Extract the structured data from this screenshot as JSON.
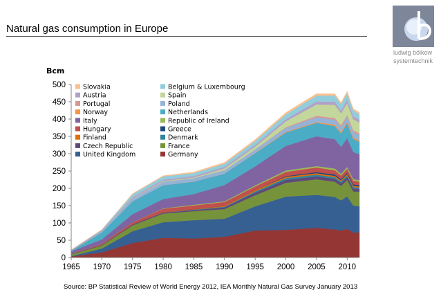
{
  "header": {
    "title": "Natural gas consumption in Europe",
    "logo_name": "b-logo-icon",
    "logo_text_1": "ludwig bölkow",
    "logo_text_2": "systemtechnik"
  },
  "footer": {
    "source": "Source: BP Statistical Review of World Energy 2012, IEA Monthly Natural Gas Survey January 2013"
  },
  "chart_data": {
    "type": "area",
    "stacked": true,
    "title": "Natural gas consumption in Europe",
    "ylabel": "Bcm",
    "xlabel": "",
    "xlim": [
      1965,
      2012
    ],
    "ylim": [
      0,
      500
    ],
    "xticks": [
      1965,
      1970,
      1975,
      1980,
      1985,
      1990,
      1995,
      2000,
      2005,
      2010
    ],
    "yticks": [
      0,
      50,
      100,
      150,
      200,
      250,
      300,
      350,
      400,
      450,
      500
    ],
    "grid": false,
    "legend_position": "top-left",
    "x": [
      1965,
      1970,
      1975,
      1980,
      1985,
      1990,
      1995,
      2000,
      2005,
      2008,
      2009,
      2010,
      2011,
      2012
    ],
    "series": [
      {
        "name": "Germany",
        "color": "#943634",
        "values": [
          3,
          15,
          42,
          57,
          55,
          60,
          78,
          80,
          86,
          81,
          78,
          83,
          72,
          73
        ]
      },
      {
        "name": "United Kingdom",
        "color": "#366092",
        "values": [
          1,
          11,
          34,
          45,
          53,
          52,
          70,
          96,
          95,
          94,
          87,
          94,
          78,
          75
        ]
      },
      {
        "name": "France",
        "color": "#76933c",
        "values": [
          5,
          9,
          17,
          25,
          26,
          28,
          32,
          40,
          45,
          44,
          42,
          47,
          41,
          42
        ]
      },
      {
        "name": "Czech Republic",
        "color": "#5f497a",
        "values": [
          1,
          1.5,
          2.5,
          3,
          3.5,
          5,
          7.5,
          8.5,
          8.5,
          8.5,
          8,
          9,
          8.5,
          8
        ]
      },
      {
        "name": "Denmark",
        "color": "#31859c",
        "values": [
          0,
          0,
          0,
          0,
          1,
          2,
          3.5,
          5,
          5,
          4.5,
          4.4,
          5,
          4.2,
          4
        ]
      },
      {
        "name": "Finland",
        "color": "#e46c0a",
        "values": [
          0,
          0,
          0,
          1,
          1,
          2.5,
          3.5,
          4,
          4.2,
          4,
          3.6,
          4,
          3.5,
          3.2
        ]
      },
      {
        "name": "Greece",
        "color": "#1f497d",
        "values": [
          0,
          0,
          0,
          0,
          0,
          0,
          0,
          2,
          3,
          4,
          3.4,
          3.6,
          4.4,
          4
        ]
      },
      {
        "name": "Hungary",
        "color": "#c0504d",
        "values": [
          1,
          3,
          6,
          10,
          11,
          11,
          11,
          12,
          13.5,
          12,
          10.5,
          11,
          10.5,
          10
        ]
      },
      {
        "name": "Republic of Ireland",
        "color": "#9bbb59",
        "values": [
          0,
          0,
          0,
          1,
          2,
          2,
          3,
          4,
          4,
          5,
          4.8,
          5.2,
          4.6,
          4.3
        ]
      },
      {
        "name": "Italy",
        "color": "#8064a2",
        "values": [
          7,
          13,
          24,
          27,
          31,
          47,
          55,
          71,
          86,
          85,
          78,
          83,
          78,
          75
        ]
      },
      {
        "name": "Netherlands",
        "color": "#4bacc6",
        "values": [
          2,
          20,
          37,
          40,
          36,
          33,
          38,
          39,
          39,
          38,
          39,
          43,
          38,
          36
        ]
      },
      {
        "name": "Norway",
        "color": "#f79646",
        "values": [
          0,
          0,
          0,
          0,
          0,
          0,
          1,
          2,
          2,
          4,
          4,
          4.1,
          4,
          4
        ]
      },
      {
        "name": "Poland",
        "color": "#95b3d7",
        "values": [
          1,
          4.5,
          8,
          10,
          10,
          10,
          10,
          11,
          14,
          14.5,
          14.5,
          15,
          15.5,
          16
        ]
      },
      {
        "name": "Portugal",
        "color": "#d99694",
        "values": [
          0,
          0,
          0,
          0,
          0,
          0,
          0,
          2,
          4,
          4.5,
          4.7,
          5,
          5,
          4.5
        ]
      },
      {
        "name": "Spain",
        "color": "#c3d69b",
        "values": [
          0,
          0,
          1,
          2,
          2,
          5,
          8,
          17,
          33,
          38,
          34.5,
          34.5,
          32,
          31
        ]
      },
      {
        "name": "Austria",
        "color": "#b2a1c7",
        "values": [
          1,
          2,
          3.5,
          4,
          4,
          4.5,
          5,
          6,
          8.5,
          9,
          8.5,
          9.5,
          9,
          8.5
        ]
      },
      {
        "name": "Belgium & Luxembourg",
        "color": "#92cddc",
        "values": [
          0,
          1,
          8,
          9.5,
          8.5,
          9,
          11,
          14,
          17,
          18,
          18,
          19,
          16.5,
          16
        ]
      },
      {
        "name": "Slovakia",
        "color": "#fabf8f",
        "values": [
          0.5,
          1,
          1.8,
          2,
          3,
          4,
          4.5,
          5.5,
          5.5,
          5,
          4.9,
          5.5,
          5,
          4.8
        ]
      }
    ],
    "legend": {
      "left_column": [
        "Slovakia",
        "Austria",
        "Portugal",
        "Norway",
        "Italy",
        "Hungary",
        "Finland",
        "Czech Republic",
        "United Kingdom"
      ],
      "right_column": [
        "Belgium & Luxembourg",
        "Spain",
        "Poland",
        "Netherlands",
        "Republic of Ireland",
        "Greece",
        "Denmark",
        "France",
        "Germany"
      ]
    }
  }
}
